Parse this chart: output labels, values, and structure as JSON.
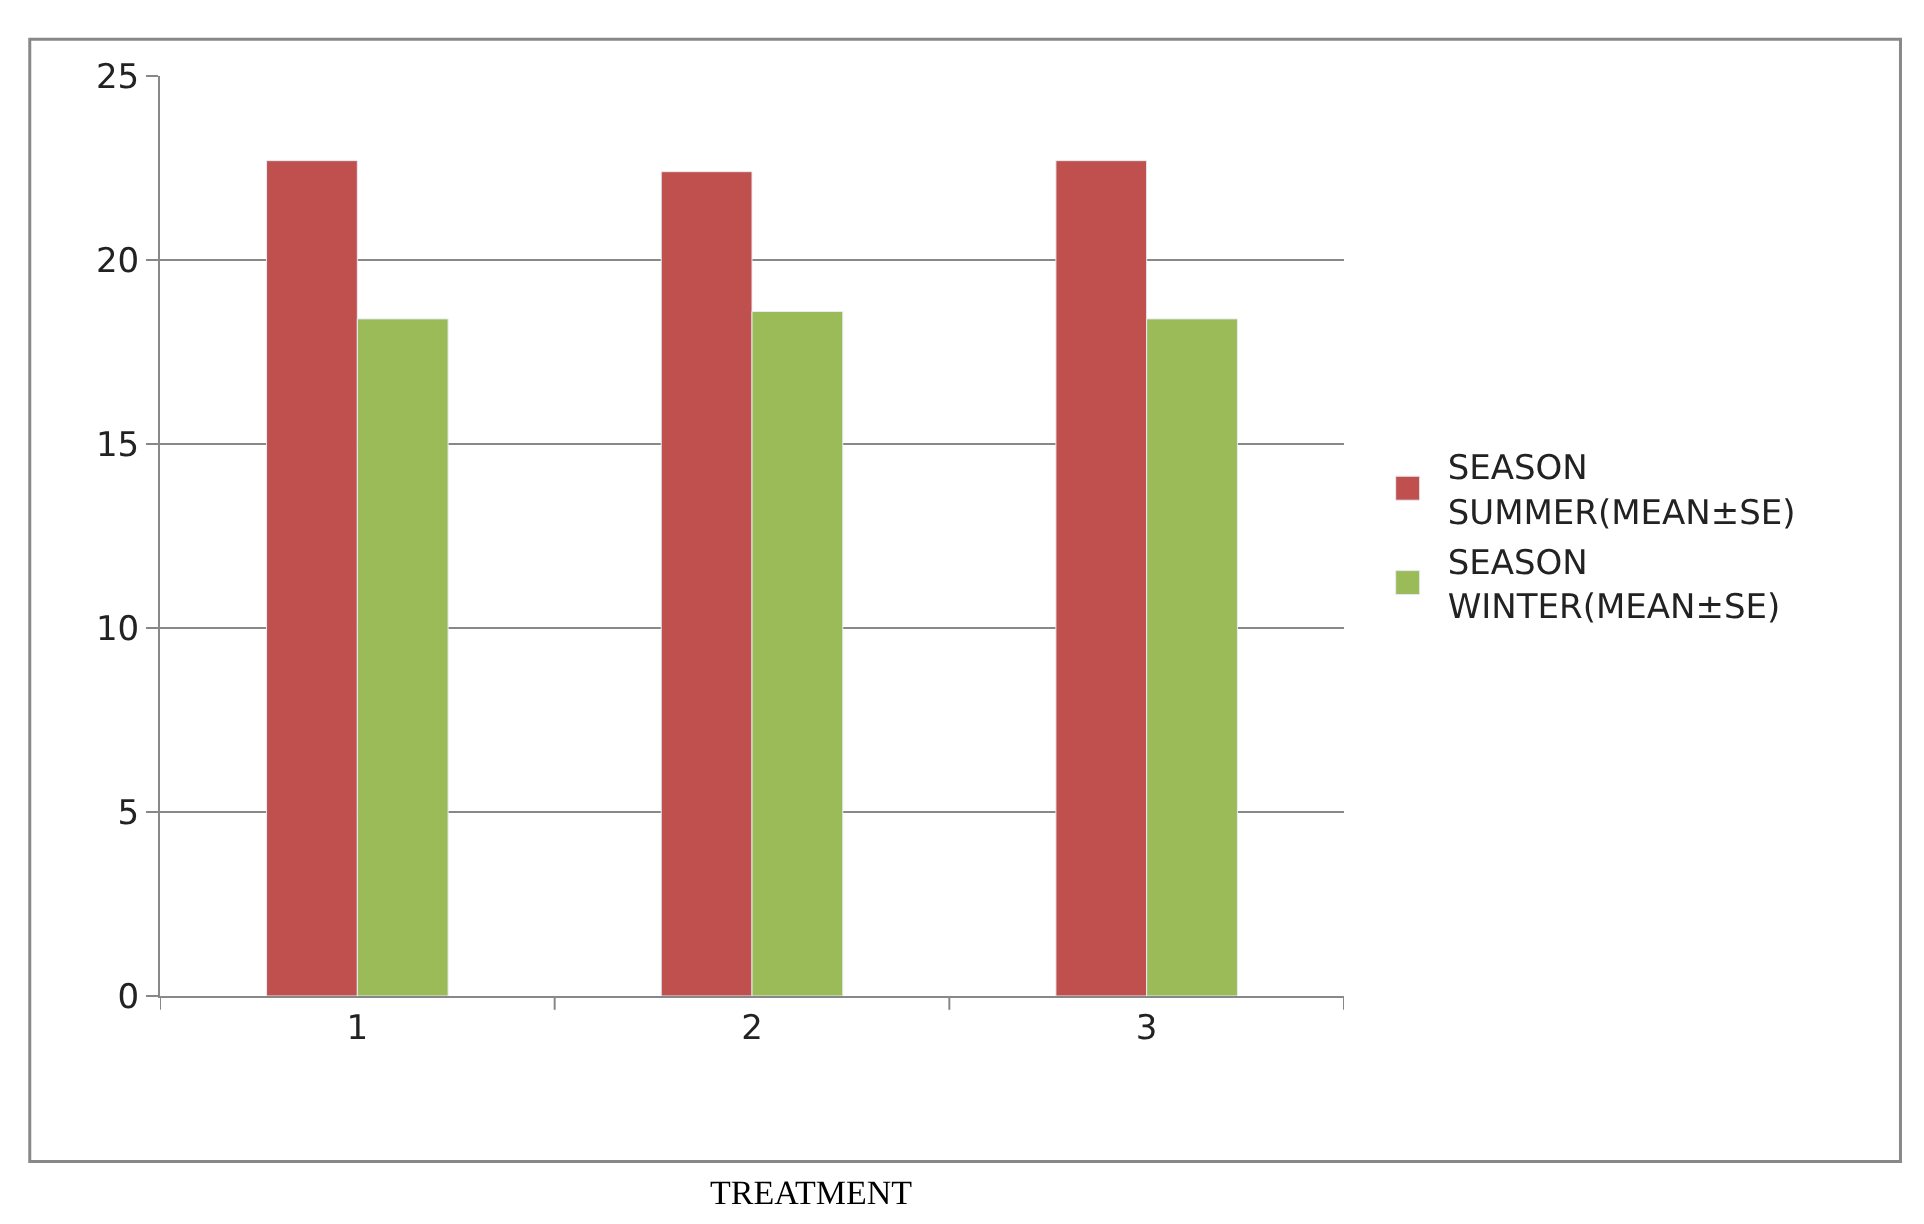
{
  "chart_data": {
    "type": "bar",
    "xlabel": "TREATMENT",
    "categories": [
      "1",
      "2",
      "3"
    ],
    "series": [
      {
        "name": "SEASON SUMMER(MEAN±SE)",
        "color": "#c0504d",
        "values": [
          22.7,
          22.4,
          22.7
        ]
      },
      {
        "name": "SEASON WINTER(MEAN±SE)",
        "color": "#9bbb59",
        "values": [
          18.4,
          18.6,
          18.4
        ]
      }
    ],
    "ylim": [
      0,
      25
    ],
    "yticks": [
      0,
      5,
      10,
      15,
      20,
      25
    ],
    "grid": "y",
    "legend": "right"
  }
}
